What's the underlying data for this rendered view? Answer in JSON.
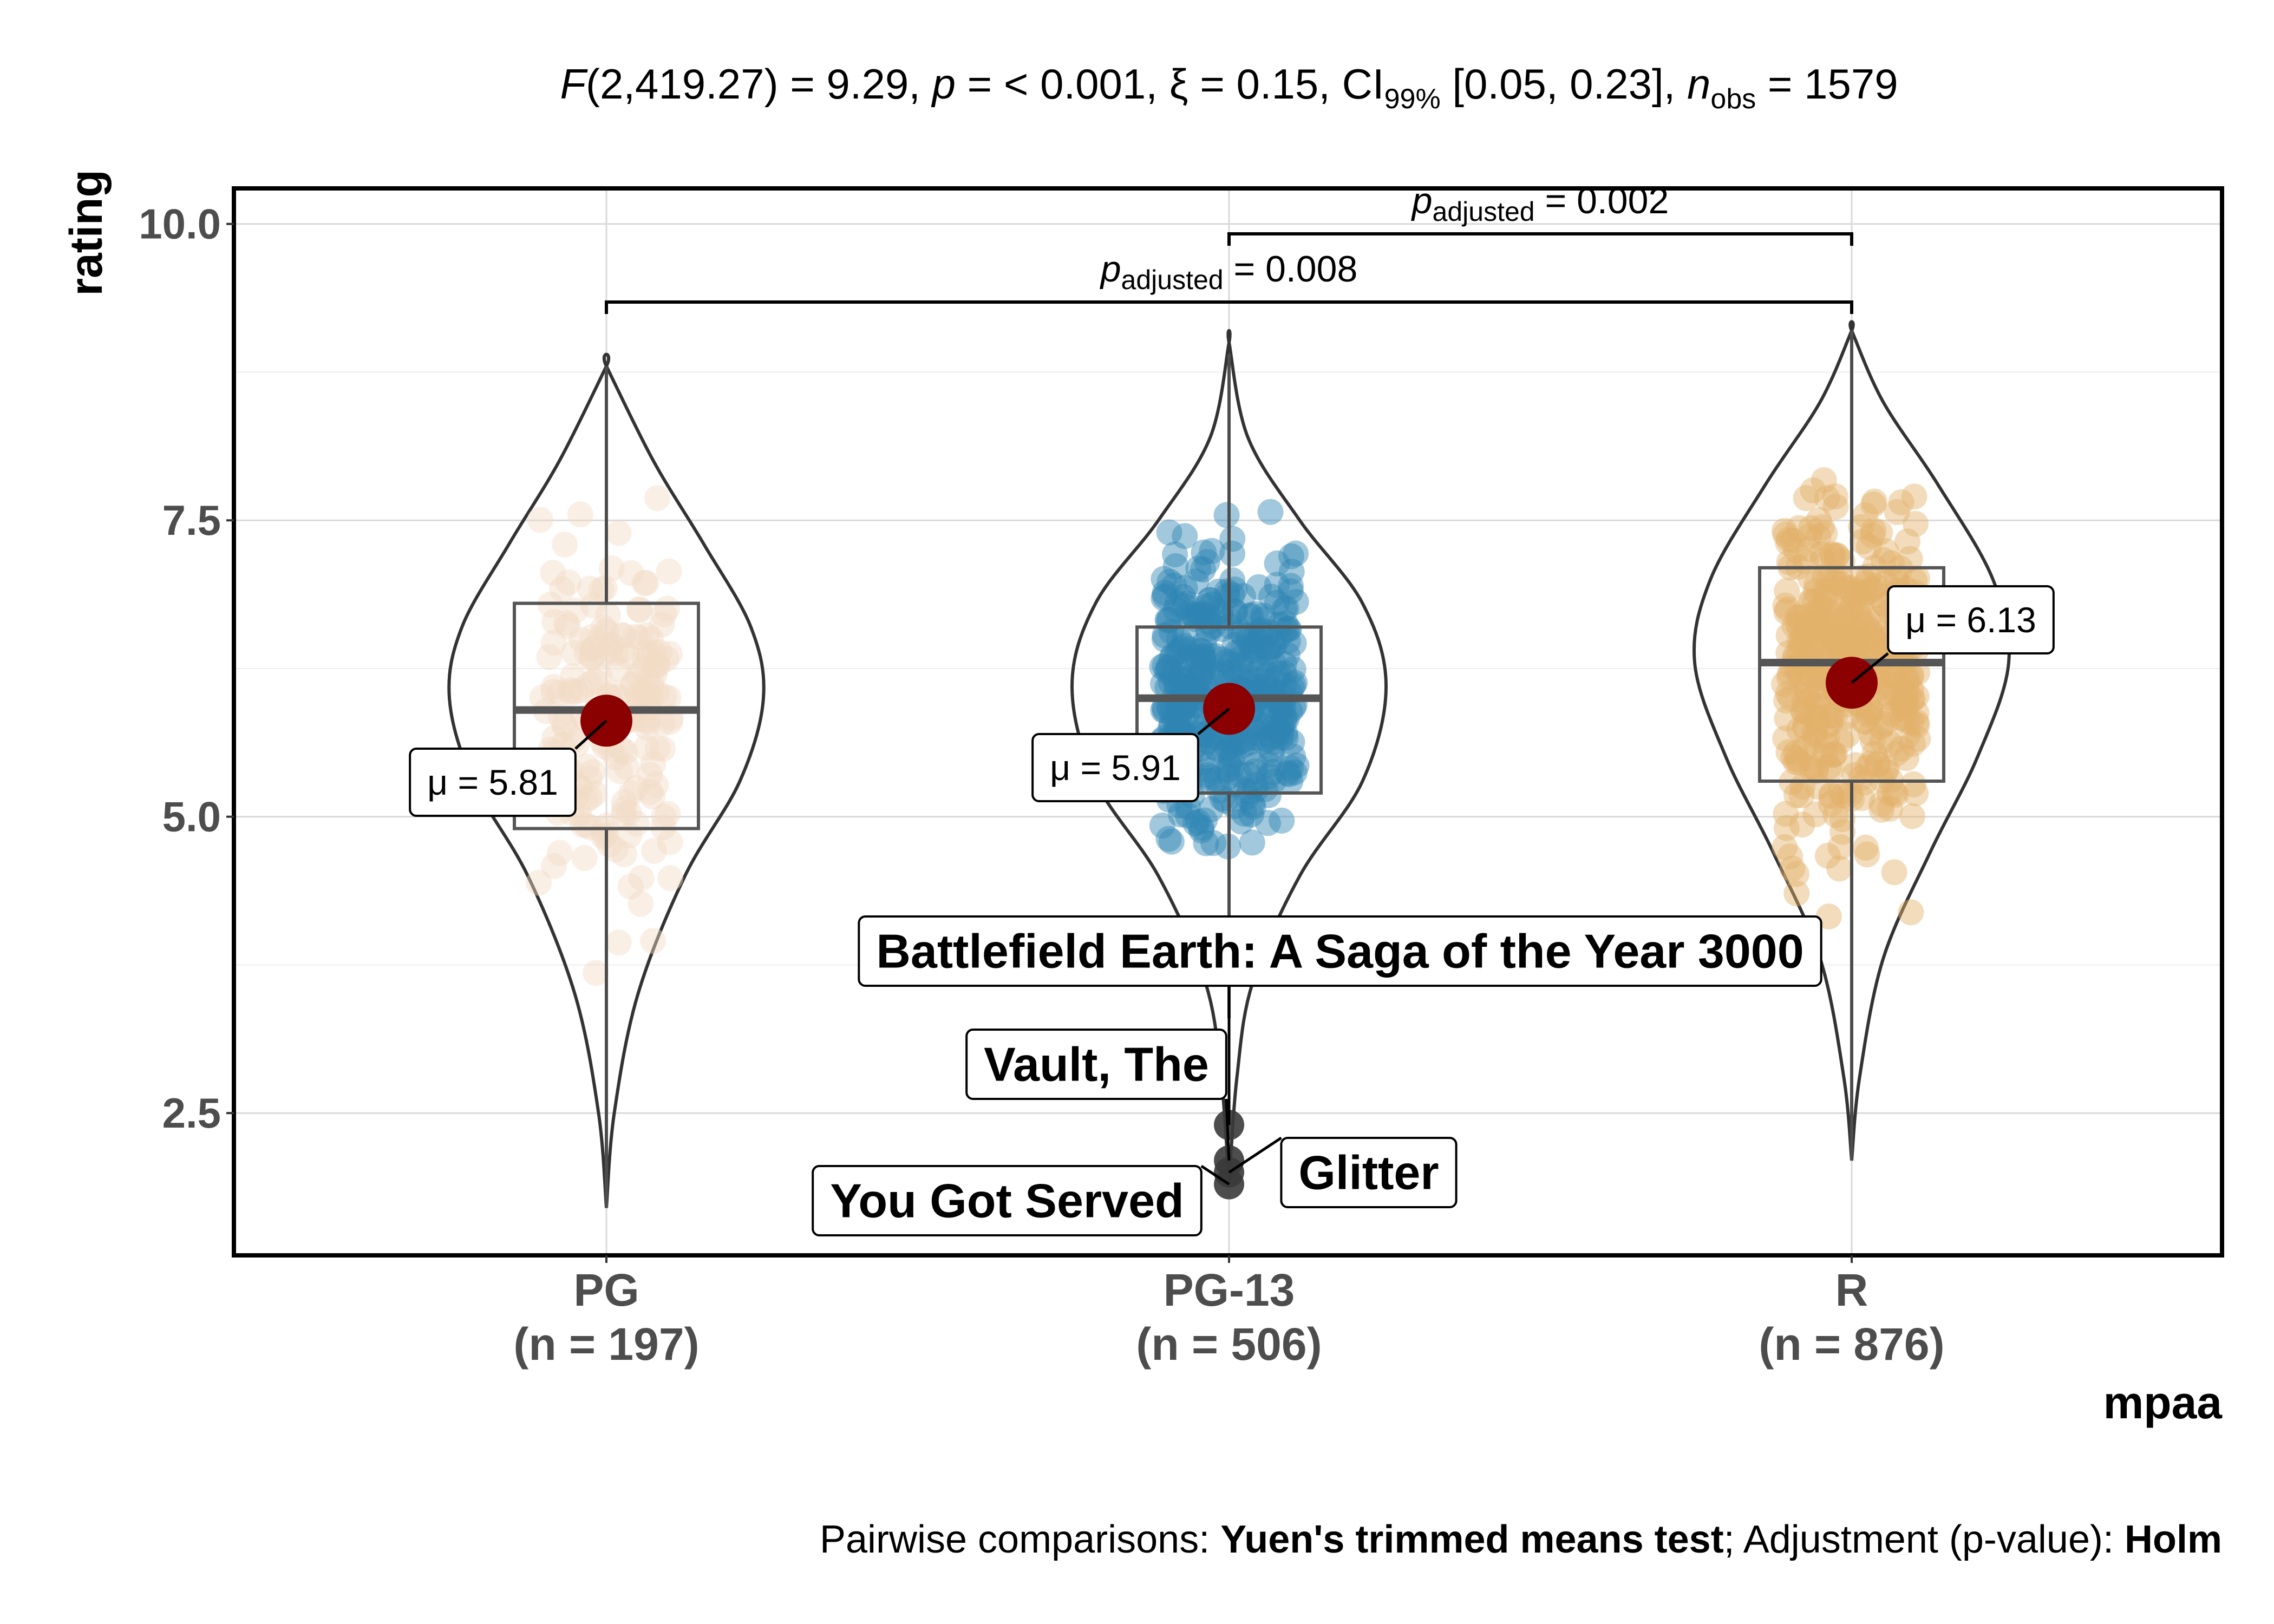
{
  "subtitle": {
    "F_part": "F",
    "F_rest": "(2,419.27) = 9.29, ",
    "p_part": "p",
    "p_rest": " = < 0.001, ξ = 0.15, CI",
    "ci_sub": "99%",
    "ci_rest": " [0.05, 0.23], ",
    "n_part": "n",
    "n_sub": "obs",
    "n_rest": " = 1579"
  },
  "caption": {
    "prefix": "Pairwise comparisons: ",
    "test": "Yuen's trimmed means test",
    "middle": "; Adjustment (p-value): ",
    "method": "Holm"
  },
  "chart_data": {
    "type": "violin-box-scatter",
    "xlabel": "mpaa",
    "ylabel": "rating",
    "ylim": [
      1.3,
      10.3
    ],
    "yticks": [
      "2.5",
      "5.0",
      "7.5",
      "10.0"
    ],
    "grid": true,
    "categories": [
      {
        "name": "PG",
        "n_label": "(n = 197)",
        "n": 197,
        "color": "#F2DCC5",
        "box": {
          "q1": 4.9,
          "median": 5.9,
          "q3": 6.8,
          "whisker_low": 1.7,
          "whisker_high": 8.8
        },
        "mean": 5.81,
        "mean_label": "μ = 5.81",
        "range": [
          1.7,
          8.8
        ],
        "violin": [
          [
            1.7,
            0.0
          ],
          [
            2.5,
            0.05
          ],
          [
            3.5,
            0.2
          ],
          [
            4.5,
            0.5
          ],
          [
            5.3,
            0.85
          ],
          [
            6.0,
            1.0
          ],
          [
            6.6,
            0.92
          ],
          [
            7.3,
            0.62
          ],
          [
            8.0,
            0.3
          ],
          [
            8.8,
            0.0
          ]
        ]
      },
      {
        "name": "PG-13",
        "n_label": "(n = 506)",
        "n": 506,
        "color": "#2E86B3",
        "box": {
          "q1": 5.2,
          "median": 6.0,
          "q3": 6.6,
          "whisker_low": 3.3,
          "whisker_high": 8.9
        },
        "mean": 5.91,
        "mean_label": "μ = 5.91",
        "range": [
          1.9,
          9.0
        ],
        "violin": [
          [
            1.9,
            0.0
          ],
          [
            2.8,
            0.05
          ],
          [
            3.6,
            0.15
          ],
          [
            4.5,
            0.45
          ],
          [
            5.3,
            0.85
          ],
          [
            6.1,
            1.0
          ],
          [
            6.8,
            0.85
          ],
          [
            7.5,
            0.45
          ],
          [
            8.2,
            0.12
          ],
          [
            9.0,
            0.0
          ]
        ]
      },
      {
        "name": "R",
        "n_label": "(n = 876)",
        "n": 876,
        "color": "#E2B26B",
        "box": {
          "q1": 5.3,
          "median": 6.3,
          "q3": 7.1,
          "whisker_low": 2.1,
          "whisker_high": 9.1
        },
        "mean": 6.13,
        "mean_label": "μ = 6.13",
        "range": [
          2.1,
          9.1
        ],
        "violin": [
          [
            2.1,
            0.0
          ],
          [
            2.8,
            0.05
          ],
          [
            3.8,
            0.2
          ],
          [
            4.7,
            0.5
          ],
          [
            5.5,
            0.8
          ],
          [
            6.3,
            1.0
          ],
          [
            7.0,
            0.9
          ],
          [
            7.8,
            0.55
          ],
          [
            8.5,
            0.2
          ],
          [
            9.1,
            0.0
          ]
        ]
      }
    ],
    "outliers": [
      {
        "category": "PG-13",
        "rating": 2.4,
        "label": "Battlefield Earth: A Saga of the Year 3000"
      },
      {
        "category": "PG-13",
        "rating": 2.1,
        "label": "Vault, The"
      },
      {
        "category": "PG-13",
        "rating": 1.9,
        "label": "You Got Served"
      },
      {
        "category": "PG-13",
        "rating": 2.0,
        "label": "Glitter"
      }
    ],
    "pairwise": [
      {
        "from": "PG-13",
        "to": "R",
        "p_sym": "p",
        "p_sub": "adjusted",
        "p_text": " = 0.002",
        "level": 1
      },
      {
        "from": "PG",
        "to": "R",
        "p_sym": "p",
        "p_sub": "adjusted",
        "p_text": " = 0.008",
        "level": 0
      }
    ],
    "mean_color": "#8B0000"
  }
}
